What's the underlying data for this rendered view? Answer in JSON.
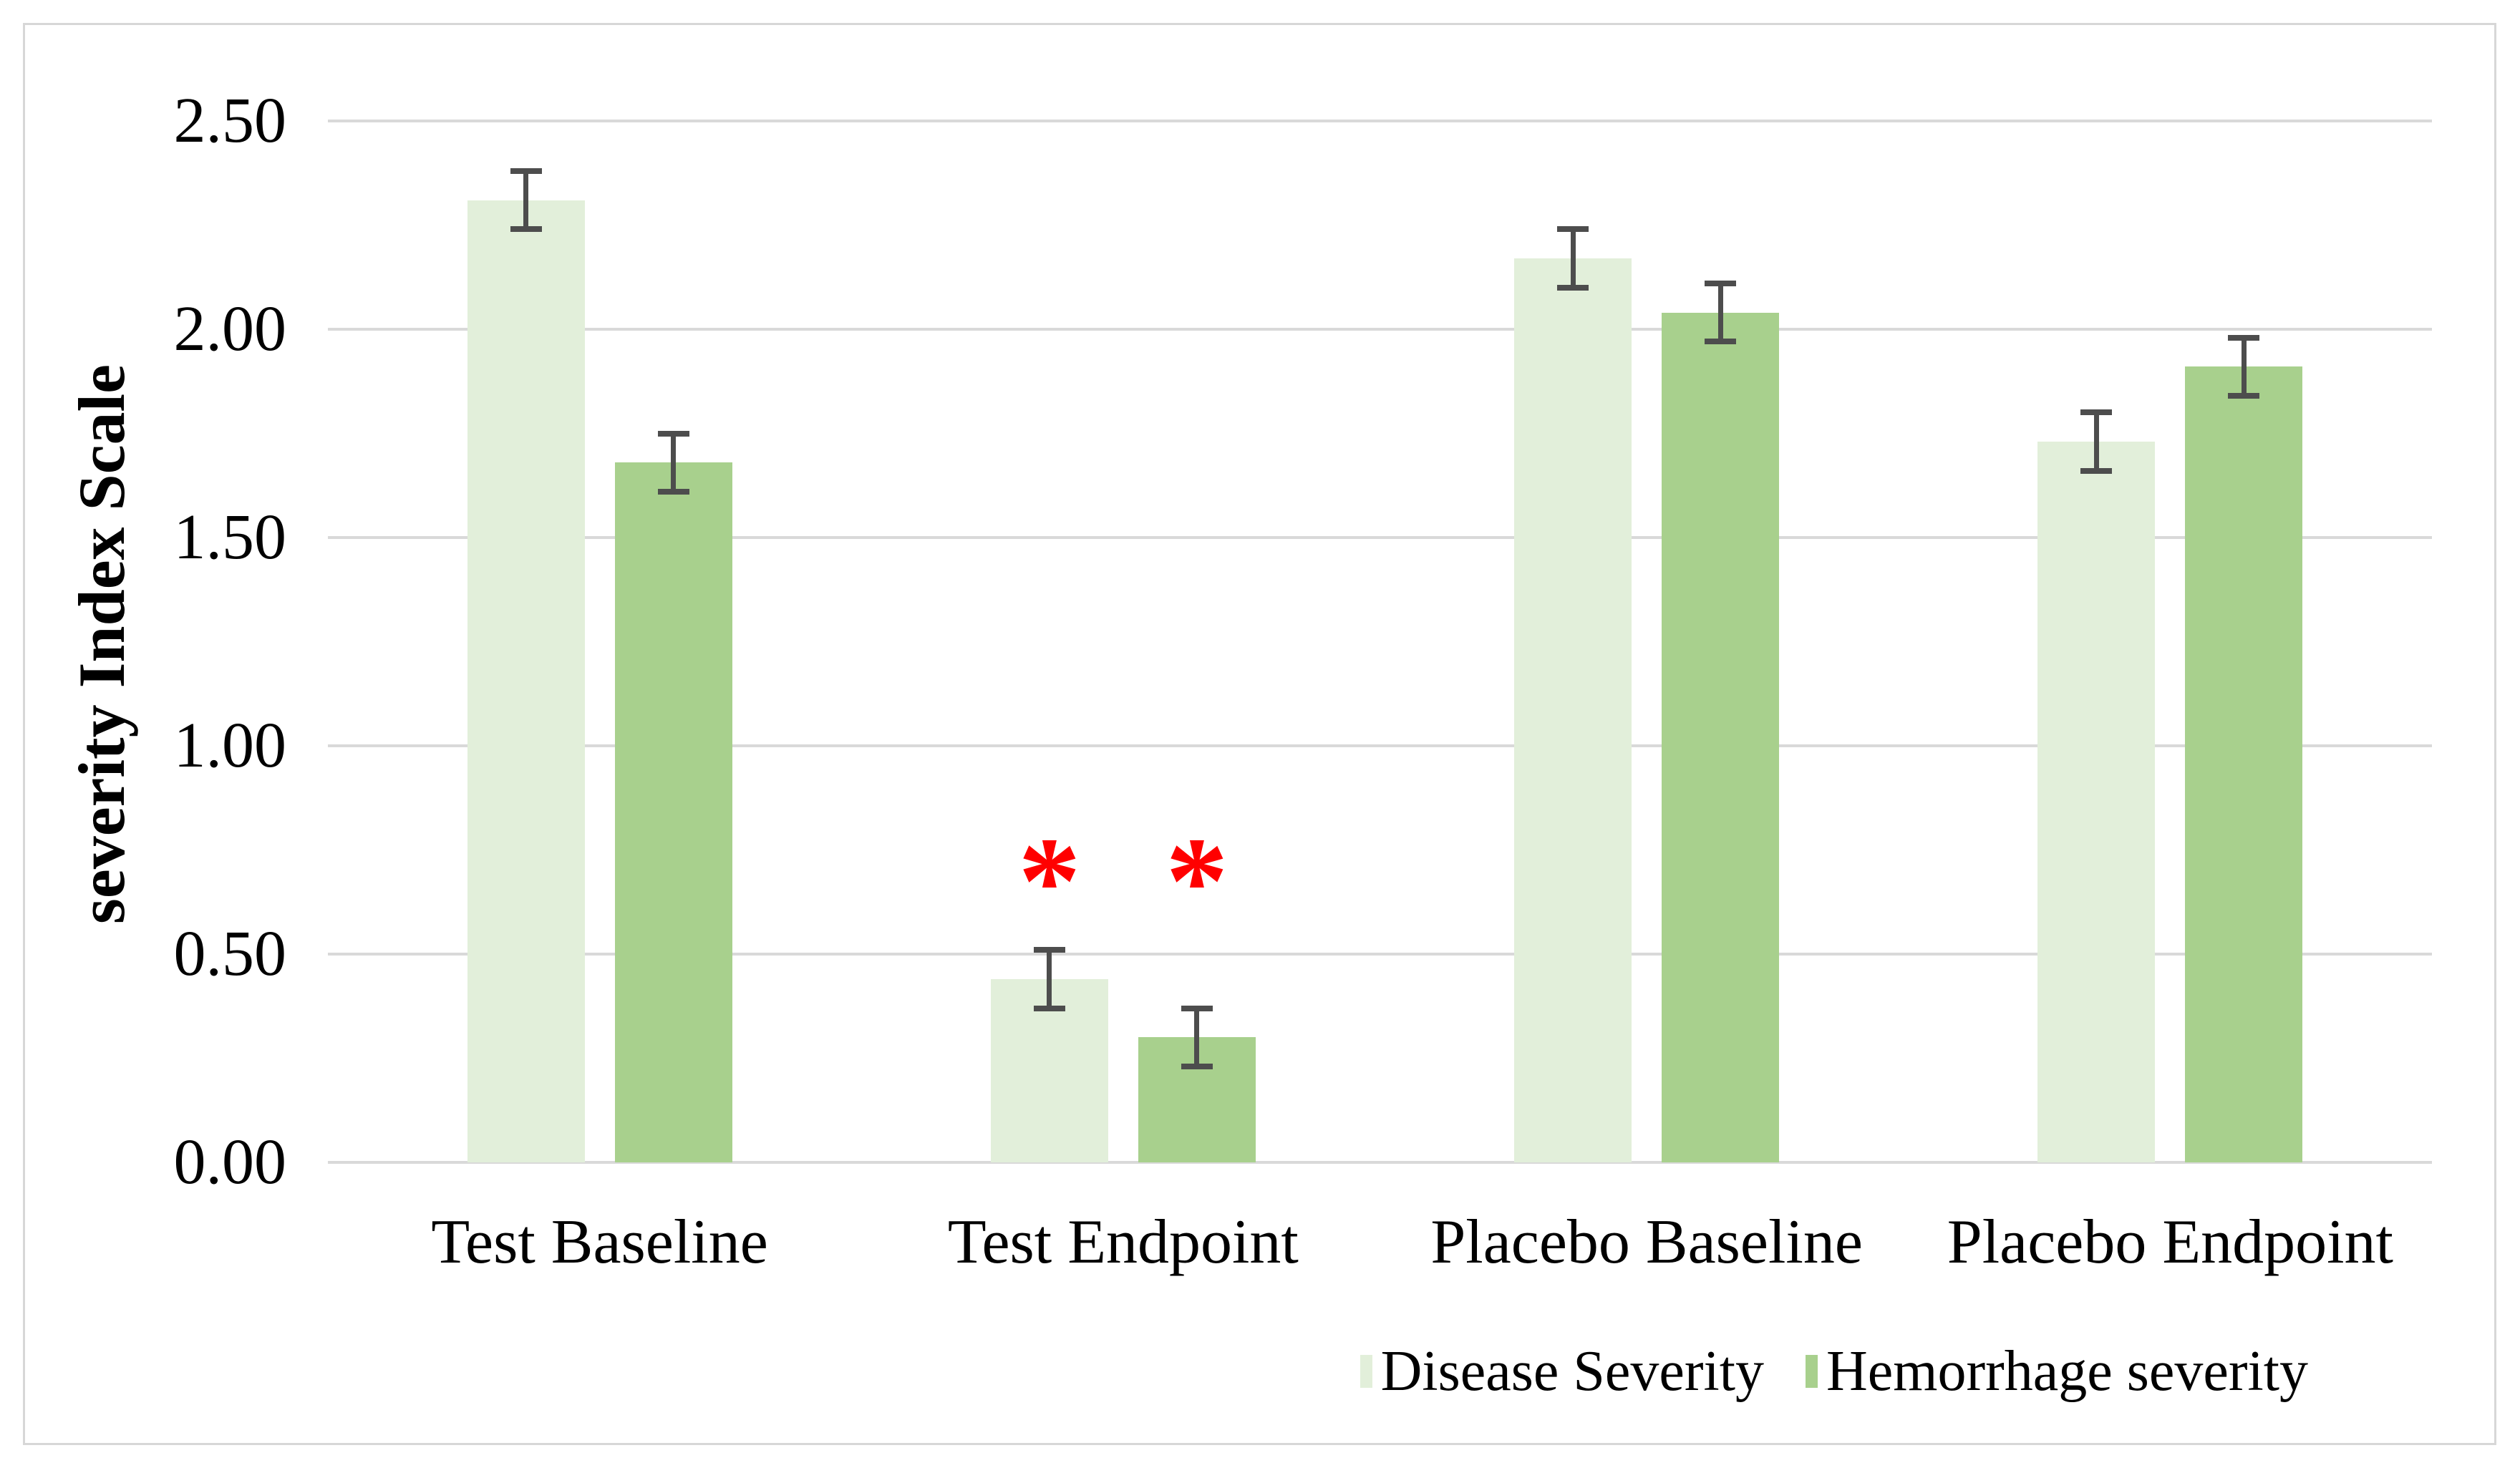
{
  "chart_data": {
    "type": "bar",
    "title": "",
    "ylabel": "severity Index Scale",
    "xlabel": "",
    "categories": [
      "Test Baseline",
      "Test Endpoint",
      "Placebo Baseline",
      "Placebo Endpoint"
    ],
    "series": [
      {
        "name": "Disease Severity",
        "color": "#e2efda",
        "values": [
          2.31,
          0.44,
          2.17,
          1.73
        ],
        "errors": [
          0.07,
          0.07,
          0.07,
          0.07
        ]
      },
      {
        "name": "Hemorrhage severity",
        "color": "#a8d08d",
        "values": [
          1.68,
          0.3,
          2.04,
          1.91
        ],
        "errors": [
          0.07,
          0.07,
          0.07,
          0.07
        ]
      }
    ],
    "ylim": [
      0,
      2.5
    ],
    "yticks": [
      {
        "value": 0.0,
        "label": "0.00"
      },
      {
        "value": 0.5,
        "label": "0.50"
      },
      {
        "value": 1.0,
        "label": "1.00"
      },
      {
        "value": 1.5,
        "label": "1.50"
      },
      {
        "value": 2.0,
        "label": "2.00"
      },
      {
        "value": 2.5,
        "label": "2.50"
      }
    ],
    "grid": true,
    "gridline_color": "#d9d9d9",
    "error_bar_color": "#4d4d4d",
    "legend_position": "bottom-right",
    "annotations": [
      {
        "text": "*",
        "color": "#ff0000",
        "category": "Test Endpoint",
        "series": "Disease Severity",
        "y": 0.73
      },
      {
        "text": "*",
        "color": "#ff0000",
        "category": "Test Endpoint",
        "series": "Hemorrhage severity",
        "y": 0.73
      }
    ]
  }
}
